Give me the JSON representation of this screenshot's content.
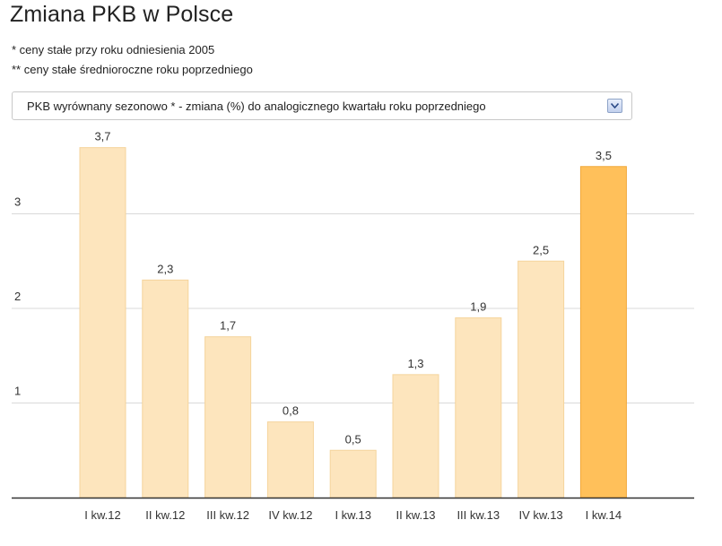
{
  "page": {
    "title": "Zmiana PKB w Polsce",
    "notes": [
      "* ceny stałe przy roku odniesienia 2005",
      "** ceny stałe średnioroczne roku poprzedniego"
    ],
    "selector": {
      "selected": "PKB wyrównany sezonowo * - zmiana (%) do analogicznego kwartału roku poprzedniego",
      "arrow_icon": "chevron-down-icon"
    }
  },
  "colors": {
    "bar": "#fde5bd",
    "bar_border": "#f5d49c",
    "bar_highlight": "#ffc05a",
    "bar_highlight_border": "#f0a83a",
    "grid": "#d9d9d9",
    "axis": "#333333",
    "text": "#333333"
  },
  "chart_data": {
    "type": "bar",
    "title": "",
    "xlabel": "",
    "ylabel": "",
    "categories": [
      "I kw.12",
      "II kw.12",
      "III kw.12",
      "IV kw.12",
      "I kw.13",
      "II kw.13",
      "III kw.13",
      "IV kw.13",
      "I kw.14"
    ],
    "values": [
      3.7,
      2.3,
      1.7,
      0.8,
      0.5,
      1.3,
      1.9,
      2.5,
      3.5
    ],
    "value_labels": [
      "3,7",
      "2,3",
      "1,7",
      "0,8",
      "0,5",
      "1,3",
      "1,9",
      "2,5",
      "3,5"
    ],
    "highlighted_index": 8,
    "yticks": [
      1,
      2,
      3
    ],
    "ylim": [
      0,
      3.7
    ],
    "grid": true,
    "legend": "none"
  }
}
